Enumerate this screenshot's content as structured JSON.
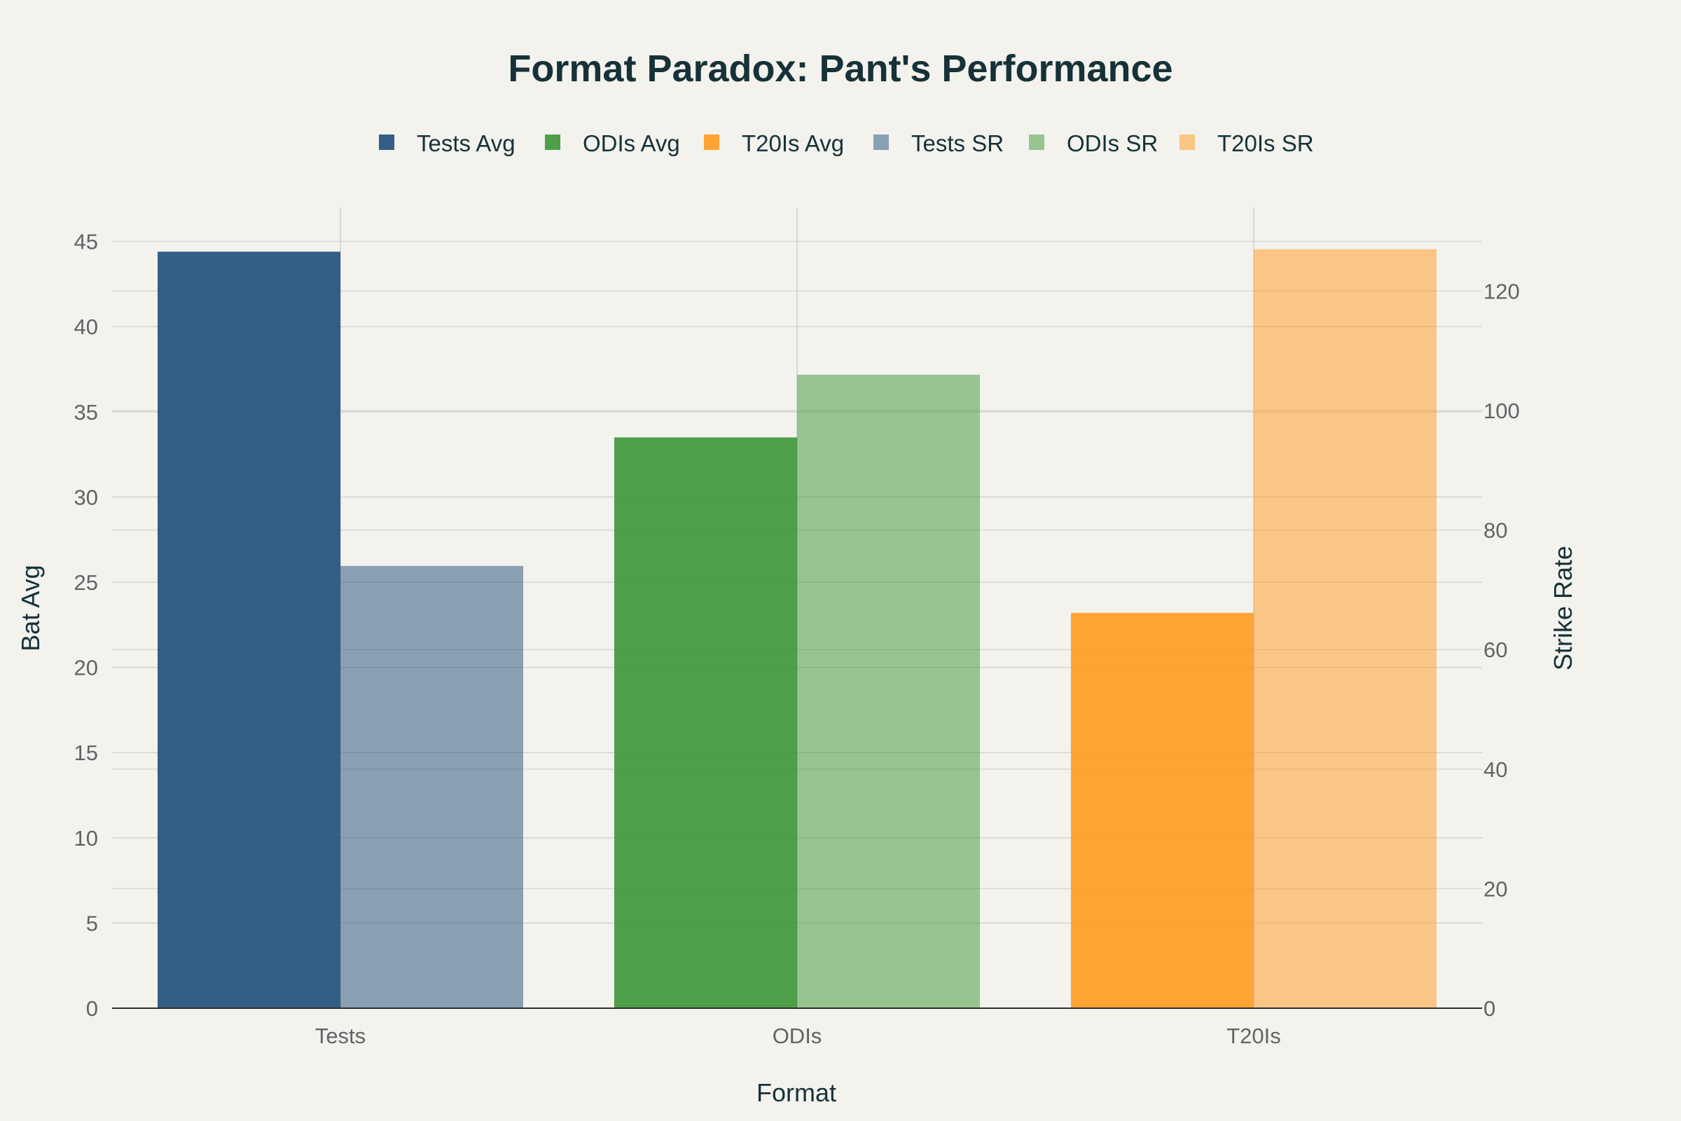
{
  "chart_data": {
    "type": "bar",
    "title": "Format Paradox: Pant's Performance",
    "xlabel": "Format",
    "ylabel": "Bat Avg",
    "y2label": "Strike Rate",
    "categories": [
      "Tests",
      "ODIs",
      "T20Is"
    ],
    "ylim": [
      0,
      47
    ],
    "y2lim": [
      0,
      134
    ],
    "yticks": [
      0,
      5,
      10,
      15,
      20,
      25,
      30,
      35,
      40,
      45
    ],
    "y2ticks": [
      0,
      20,
      40,
      60,
      80,
      100,
      120
    ],
    "grid": true,
    "legend_position": "top-center",
    "series": [
      {
        "name": "Tests Avg",
        "axis": "y",
        "color": "#1f4e79",
        "opacity": 0.9,
        "category": "Tests",
        "value": 44.4
      },
      {
        "name": "ODIs Avg",
        "axis": "y",
        "color": "#3c9636",
        "opacity": 0.9,
        "category": "ODIs",
        "value": 33.5
      },
      {
        "name": "T20Is Avg",
        "axis": "y",
        "color": "#ff9a1f",
        "opacity": 0.9,
        "category": "T20Is",
        "value": 23.2
      },
      {
        "name": "Tests SR",
        "axis": "y2",
        "color": "#1f4e79",
        "opacity": 0.5,
        "category": "Tests",
        "value": 74
      },
      {
        "name": "ODIs SR",
        "axis": "y2",
        "color": "#3c9636",
        "opacity": 0.5,
        "category": "ODIs",
        "value": 106
      },
      {
        "name": "T20Is SR",
        "axis": "y2",
        "color": "#ff9a1f",
        "opacity": 0.5,
        "category": "T20Is",
        "value": 127
      }
    ]
  }
}
